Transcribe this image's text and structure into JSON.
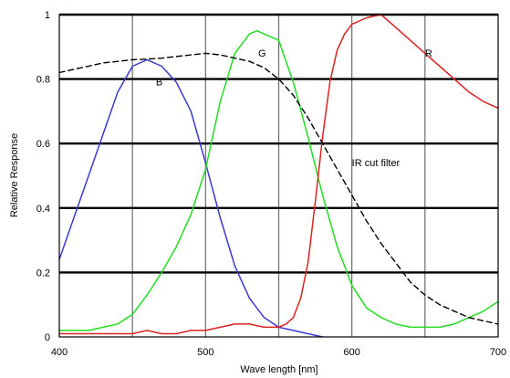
{
  "chart_data": {
    "type": "line",
    "title": "",
    "xlabel": "Wave length [nm]",
    "ylabel": "Relative Response",
    "xlim": [
      400,
      700
    ],
    "ylim": [
      0,
      1
    ],
    "xticks": [
      400,
      500,
      600,
      700
    ],
    "xtick_labels": [
      "400",
      "500",
      "600",
      "700"
    ],
    "yticks": [
      0,
      0.2,
      0.4,
      0.6,
      0.8,
      1
    ],
    "ytick_labels": [
      "0",
      "0.2",
      "0.4",
      "0.6",
      "0.8",
      "1"
    ],
    "vertical_gridlines": [
      450,
      500,
      550,
      600,
      650
    ],
    "horizontal_gridlines": [
      0.2,
      0.4,
      0.6,
      0.8,
      1.0
    ],
    "grid": true,
    "series": [
      {
        "name": "B",
        "color": "#3a3ad0",
        "style": "solid",
        "label_at": [
          466,
          0.78
        ],
        "x": [
          400,
          410,
          420,
          430,
          440,
          450,
          460,
          470,
          480,
          490,
          500,
          510,
          520,
          530,
          540,
          550,
          560,
          570,
          580
        ],
        "y": [
          0.24,
          0.37,
          0.5,
          0.63,
          0.76,
          0.84,
          0.86,
          0.84,
          0.79,
          0.7,
          0.54,
          0.37,
          0.22,
          0.12,
          0.06,
          0.03,
          0.02,
          0.01,
          0.0
        ]
      },
      {
        "name": "G",
        "color": "#22dd22",
        "style": "solid",
        "label_at": [
          536,
          0.87
        ],
        "x": [
          400,
          410,
          420,
          430,
          440,
          450,
          460,
          470,
          480,
          490,
          500,
          510,
          520,
          530,
          535,
          540,
          550,
          560,
          570,
          580,
          590,
          600,
          610,
          620,
          630,
          640,
          650,
          660,
          670,
          680,
          690,
          700
        ],
        "y": [
          0.02,
          0.02,
          0.02,
          0.03,
          0.04,
          0.07,
          0.13,
          0.2,
          0.28,
          0.38,
          0.52,
          0.73,
          0.88,
          0.94,
          0.95,
          0.94,
          0.92,
          0.79,
          0.62,
          0.44,
          0.28,
          0.16,
          0.09,
          0.06,
          0.04,
          0.03,
          0.03,
          0.03,
          0.04,
          0.06,
          0.08,
          0.11
        ]
      },
      {
        "name": "R",
        "color": "#dd2222",
        "style": "solid",
        "label_at": [
          650,
          0.87
        ],
        "x": [
          400,
          410,
          420,
          430,
          440,
          450,
          460,
          470,
          480,
          490,
          500,
          510,
          520,
          530,
          540,
          550,
          555,
          560,
          565,
          570,
          575,
          580,
          585,
          590,
          595,
          600,
          610,
          620,
          630,
          640,
          650,
          660,
          670,
          680,
          690,
          700
        ],
        "y": [
          0.01,
          0.01,
          0.01,
          0.01,
          0.01,
          0.01,
          0.02,
          0.01,
          0.01,
          0.02,
          0.02,
          0.03,
          0.04,
          0.04,
          0.03,
          0.03,
          0.04,
          0.06,
          0.12,
          0.23,
          0.42,
          0.62,
          0.79,
          0.89,
          0.94,
          0.97,
          0.99,
          1.0,
          0.96,
          0.92,
          0.88,
          0.84,
          0.8,
          0.76,
          0.73,
          0.71
        ]
      },
      {
        "name": "IR cut filter",
        "color": "#000000",
        "style": "dashed",
        "label_at": [
          600,
          0.53
        ],
        "x": [
          400,
          410,
          420,
          430,
          440,
          450,
          460,
          470,
          480,
          490,
          500,
          510,
          520,
          530,
          540,
          550,
          560,
          570,
          580,
          590,
          600,
          610,
          620,
          630,
          640,
          650,
          660,
          670,
          680,
          690,
          700
        ],
        "y": [
          0.82,
          0.83,
          0.84,
          0.85,
          0.855,
          0.86,
          0.862,
          0.865,
          0.87,
          0.875,
          0.88,
          0.875,
          0.865,
          0.855,
          0.835,
          0.8,
          0.75,
          0.68,
          0.6,
          0.52,
          0.44,
          0.36,
          0.29,
          0.23,
          0.17,
          0.13,
          0.1,
          0.08,
          0.06,
          0.05,
          0.04
        ]
      }
    ]
  }
}
